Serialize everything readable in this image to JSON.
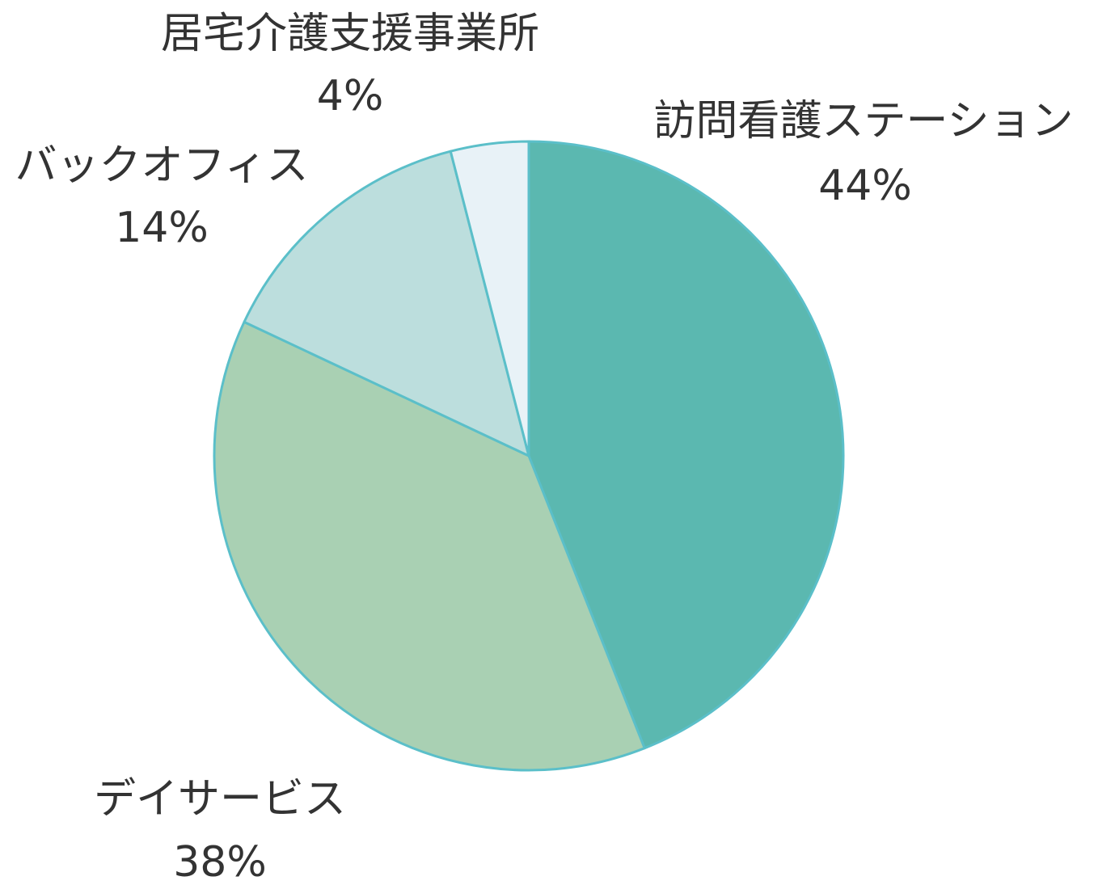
{
  "chart_data": {
    "type": "pie",
    "title": "",
    "start_angle_deg": 0,
    "direction": "clockwise",
    "slices": [
      {
        "label": "訪問看護ステーション",
        "value": 44,
        "value_label": "44%",
        "color": "#5bb8b0"
      },
      {
        "label": "デイサービス",
        "value": 38,
        "value_label": "38%",
        "color": "#a9d0b3"
      },
      {
        "label": "バックオフィス",
        "value": 14,
        "value_label": "14%",
        "color": "#bcdedd"
      },
      {
        "label": "居宅介護支援事業所",
        "value": 4,
        "value_label": "4%",
        "color": "#e8f2f7"
      }
    ],
    "edge_color": "#5bbfc9",
    "label_color": "#333333"
  }
}
